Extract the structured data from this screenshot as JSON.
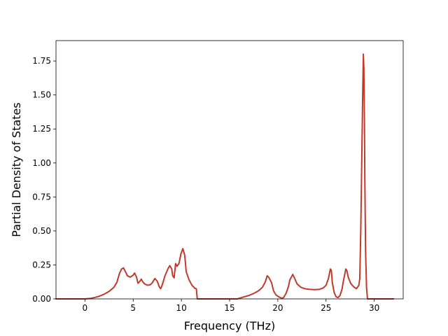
{
  "chart_data": {
    "type": "line",
    "title": "",
    "xlabel": "Frequency (THz)",
    "ylabel": "Partial Density of States",
    "xlim": [
      -3.0,
      33.0
    ],
    "ylim": [
      0.0,
      1.9
    ],
    "x_ticks": [
      0,
      5,
      10,
      15,
      20,
      25,
      30
    ],
    "x_tick_labels": [
      "0",
      "5",
      "10",
      "15",
      "20",
      "25",
      "30"
    ],
    "y_ticks": [
      0.0,
      0.25,
      0.5,
      0.75,
      1.0,
      1.25,
      1.5,
      1.75
    ],
    "y_tick_labels": [
      "0.00",
      "0.25",
      "0.50",
      "0.75",
      "1.00",
      "1.25",
      "1.50",
      "1.75"
    ],
    "grid": false,
    "legend": "none",
    "line_color": "#c0392b",
    "series": [
      {
        "values": [
          [
            -3.0,
            0.0
          ],
          [
            0.0,
            0.0
          ],
          [
            0.5,
            0.003
          ],
          [
            1.0,
            0.01
          ],
          [
            1.5,
            0.02
          ],
          [
            2.0,
            0.035
          ],
          [
            2.5,
            0.055
          ],
          [
            3.0,
            0.085
          ],
          [
            3.3,
            0.12
          ],
          [
            3.6,
            0.19
          ],
          [
            3.8,
            0.22
          ],
          [
            4.0,
            0.228
          ],
          [
            4.2,
            0.2
          ],
          [
            4.4,
            0.17
          ],
          [
            4.7,
            0.16
          ],
          [
            5.0,
            0.175
          ],
          [
            5.15,
            0.19
          ],
          [
            5.35,
            0.16
          ],
          [
            5.5,
            0.115
          ],
          [
            5.7,
            0.13
          ],
          [
            5.85,
            0.145
          ],
          [
            6.0,
            0.125
          ],
          [
            6.2,
            0.11
          ],
          [
            6.5,
            0.1
          ],
          [
            6.8,
            0.105
          ],
          [
            7.0,
            0.12
          ],
          [
            7.25,
            0.15
          ],
          [
            7.5,
            0.13
          ],
          [
            7.7,
            0.09
          ],
          [
            7.85,
            0.075
          ],
          [
            8.0,
            0.1
          ],
          [
            8.3,
            0.17
          ],
          [
            8.6,
            0.22
          ],
          [
            8.8,
            0.245
          ],
          [
            9.0,
            0.22
          ],
          [
            9.1,
            0.17
          ],
          [
            9.25,
            0.155
          ],
          [
            9.4,
            0.26
          ],
          [
            9.55,
            0.24
          ],
          [
            9.75,
            0.26
          ],
          [
            9.95,
            0.33
          ],
          [
            10.15,
            0.37
          ],
          [
            10.35,
            0.32
          ],
          [
            10.5,
            0.2
          ],
          [
            10.8,
            0.14
          ],
          [
            11.1,
            0.1
          ],
          [
            11.4,
            0.078
          ],
          [
            11.55,
            0.075
          ],
          [
            11.65,
            0.0
          ],
          [
            15.8,
            0.0
          ],
          [
            16.5,
            0.015
          ],
          [
            17.0,
            0.025
          ],
          [
            17.5,
            0.04
          ],
          [
            18.0,
            0.06
          ],
          [
            18.4,
            0.085
          ],
          [
            18.7,
            0.125
          ],
          [
            18.9,
            0.17
          ],
          [
            19.05,
            0.16
          ],
          [
            19.2,
            0.14
          ],
          [
            19.35,
            0.12
          ],
          [
            19.55,
            0.06
          ],
          [
            19.8,
            0.03
          ],
          [
            20.1,
            0.015
          ],
          [
            20.4,
            0.005
          ],
          [
            20.6,
            0.01
          ],
          [
            20.85,
            0.04
          ],
          [
            21.1,
            0.09
          ],
          [
            21.25,
            0.14
          ],
          [
            21.55,
            0.18
          ],
          [
            21.75,
            0.15
          ],
          [
            22.0,
            0.11
          ],
          [
            22.4,
            0.085
          ],
          [
            22.8,
            0.075
          ],
          [
            23.3,
            0.07
          ],
          [
            23.8,
            0.068
          ],
          [
            24.3,
            0.07
          ],
          [
            24.7,
            0.08
          ],
          [
            25.0,
            0.1
          ],
          [
            25.25,
            0.15
          ],
          [
            25.45,
            0.22
          ],
          [
            25.55,
            0.21
          ],
          [
            25.65,
            0.12
          ],
          [
            25.85,
            0.045
          ],
          [
            26.05,
            0.015
          ],
          [
            26.25,
            0.01
          ],
          [
            26.45,
            0.025
          ],
          [
            26.65,
            0.07
          ],
          [
            26.85,
            0.15
          ],
          [
            27.05,
            0.22
          ],
          [
            27.15,
            0.21
          ],
          [
            27.3,
            0.16
          ],
          [
            27.55,
            0.115
          ],
          [
            27.85,
            0.09
          ],
          [
            28.15,
            0.075
          ],
          [
            28.4,
            0.1
          ],
          [
            28.5,
            0.15
          ],
          [
            28.6,
            0.5
          ],
          [
            28.7,
            1.0
          ],
          [
            28.8,
            1.5
          ],
          [
            28.87,
            1.8
          ],
          [
            28.92,
            1.7
          ],
          [
            28.97,
            1.4
          ],
          [
            29.02,
            0.9
          ],
          [
            29.1,
            0.35
          ],
          [
            29.2,
            0.08
          ],
          [
            29.3,
            0.0
          ],
          [
            32.0,
            0.0
          ]
        ]
      }
    ]
  }
}
